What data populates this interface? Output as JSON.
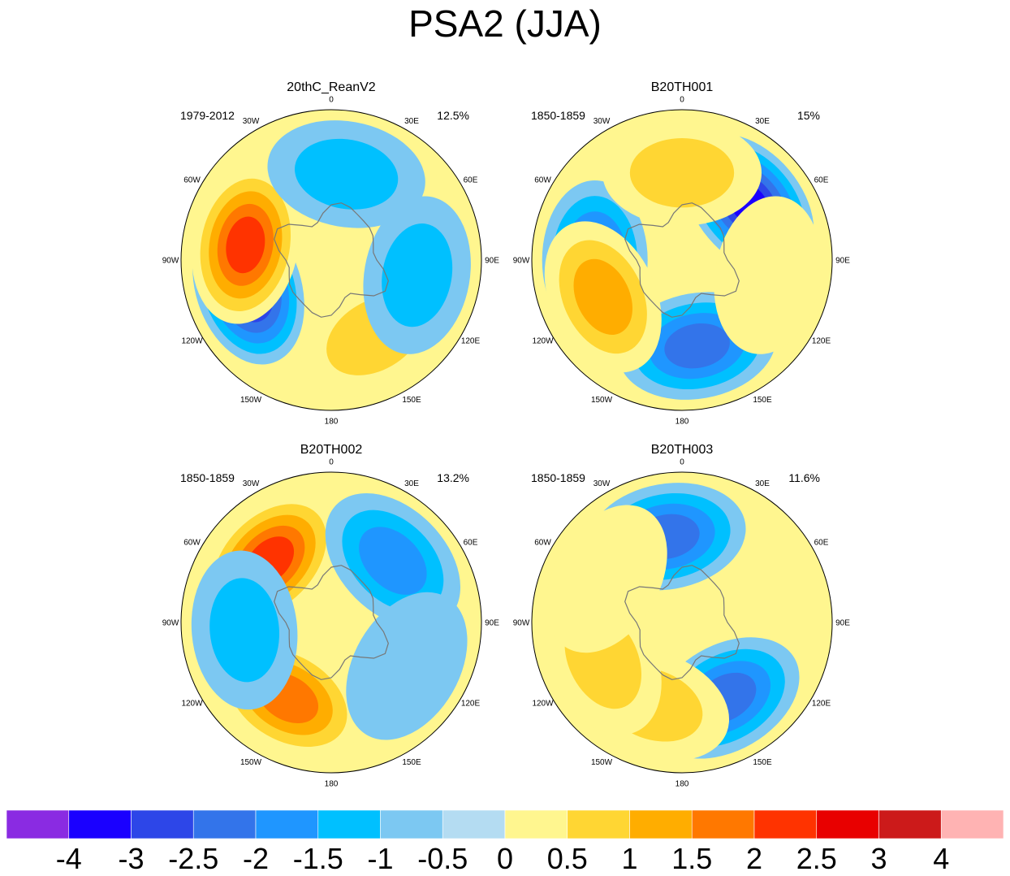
{
  "title": "PSA2 (JJA)",
  "chart_data": [
    {
      "type": "heatmap",
      "projection": "south-polar-stereographic",
      "title": "20thC_ReanV2",
      "period": "1979-2012",
      "variance_explained": "12.5%",
      "longitude_labels": [
        "0",
        "30E",
        "60E",
        "90E",
        "120E",
        "150E",
        "180",
        "150W",
        "120W",
        "90W",
        "60W",
        "30W"
      ],
      "anomaly_centers": [
        {
          "lon": -108,
          "value": -3.0
        },
        {
          "lon": -80,
          "value": 2.5
        },
        {
          "lon": 80,
          "value": 0.5
        },
        {
          "lon": 150,
          "value": 1.0
        },
        {
          "lon": 10,
          "value": -1.0
        },
        {
          "lon": 100,
          "value": -1.0
        }
      ]
    },
    {
      "type": "heatmap",
      "projection": "south-polar-stereographic",
      "title": "B20TH001",
      "period": "1850-1859",
      "variance_explained": "15%",
      "longitude_labels": [
        "0",
        "30E",
        "60E",
        "90E",
        "120E",
        "150E",
        "180",
        "150W",
        "120W",
        "90W",
        "60W",
        "30W"
      ],
      "anomaly_centers": [
        {
          "lon": 50,
          "value": -3.0
        },
        {
          "lon": -90,
          "value": -2.0
        },
        {
          "lon": 170,
          "value": -2.0
        },
        {
          "lon": -115,
          "value": 1.5
        },
        {
          "lon": 0,
          "value": 1.0
        },
        {
          "lon": 100,
          "value": 0.5
        }
      ]
    },
    {
      "type": "heatmap",
      "projection": "south-polar-stereographic",
      "title": "B20TH002",
      "period": "1850-1859",
      "variance_explained": "13.2%",
      "longitude_labels": [
        "0",
        "30E",
        "60E",
        "90E",
        "120E",
        "150E",
        "180",
        "150W",
        "120W",
        "90W",
        "60W",
        "30W"
      ],
      "anomaly_centers": [
        {
          "lon": -45,
          "value": 2.5
        },
        {
          "lon": -150,
          "value": 2.0
        },
        {
          "lon": -95,
          "value": -1.0
        },
        {
          "lon": 45,
          "value": -1.5
        },
        {
          "lon": 120,
          "value": -0.5
        }
      ]
    },
    {
      "type": "heatmap",
      "projection": "south-polar-stereographic",
      "title": "B20TH003",
      "period": "1850-1859",
      "variance_explained": "11.6%",
      "longitude_labels": [
        "0",
        "30E",
        "60E",
        "90E",
        "120E",
        "150E",
        "180",
        "150W",
        "120W",
        "90W",
        "60W",
        "30W"
      ],
      "anomaly_centers": [
        {
          "lon": -10,
          "value": -2.0
        },
        {
          "lon": 150,
          "value": -2.0
        },
        {
          "lon": -160,
          "value": 1.0
        },
        {
          "lon": -115,
          "value": 1.0
        },
        {
          "lon": -60,
          "value": 0.5
        }
      ]
    }
  ],
  "colorbar": {
    "colors": [
      "#8a2be2",
      "#1a00ff",
      "#2d46e8",
      "#3374ea",
      "#1f96ff",
      "#00c0ff",
      "#7cc8f2",
      "#b4dcf2",
      "#fff68f",
      "#ffd633",
      "#ffad00",
      "#ff7800",
      "#ff3300",
      "#e80000",
      "#cc1a1a",
      "#ffb3b3"
    ],
    "labels": [
      "-4",
      "-3",
      "-2.5",
      "-2",
      "-1.5",
      "-1",
      "-0.5",
      "0",
      "0.5",
      "1",
      "1.5",
      "2",
      "2.5",
      "3",
      "4"
    ]
  }
}
